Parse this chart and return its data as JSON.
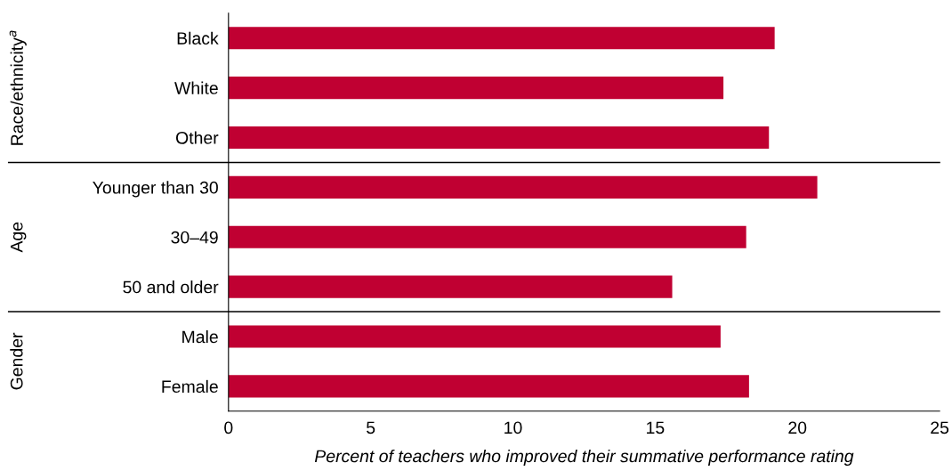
{
  "chart_data": [
    {
      "type": "bar",
      "orientation": "horizontal",
      "ylabel": "Race/ethnicity$^{a}$",
      "categories": [
        "Black",
        "White",
        "Other"
      ],
      "values": [
        19.2,
        17.4,
        19.0
      ],
      "color": "#c00032",
      "xlim": [
        0,
        25
      ],
      "tick_labels": "y",
      "grid": false,
      "legend": false
    },
    {
      "type": "bar",
      "orientation": "horizontal",
      "ylabel": "Age",
      "categories": [
        "Younger than 30",
        "30–49",
        "50 and older"
      ],
      "values": [
        20.7,
        18.2,
        15.6
      ],
      "color": "#c00032",
      "xlim": [
        0,
        25
      ],
      "tick_labels": "y",
      "grid": false,
      "legend": false
    },
    {
      "type": "bar",
      "orientation": "horizontal",
      "ylabel": "Gender",
      "categories": [
        "Male",
        "Female"
      ],
      "values": [
        17.3,
        18.3
      ],
      "color": "#c00032",
      "xlim": [
        0,
        25
      ],
      "xticks": [
        0,
        5,
        10,
        15,
        20,
        25
      ],
      "xlabel": "Percent of teachers who improved their summative performance rating",
      "grid": false,
      "legend": false
    }
  ]
}
